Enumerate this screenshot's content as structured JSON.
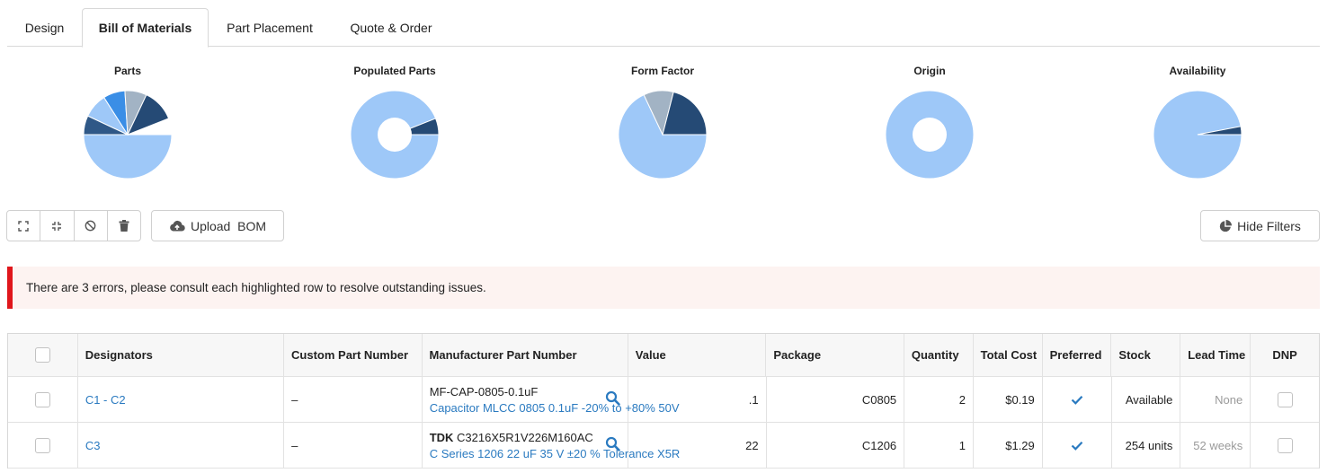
{
  "tabs": [
    {
      "label": "Design"
    },
    {
      "label": "Bill of Materials",
      "active": true
    },
    {
      "label": "Part Placement"
    },
    {
      "label": "Quote & Order"
    }
  ],
  "charts": [
    {
      "title": "Parts",
      "type": "pie",
      "slices": [
        0.5,
        0.07,
        0.09,
        0.08,
        0.08,
        0.12
      ],
      "colors": [
        "#9ec8f8",
        "#2f5887",
        "#9ec8f8",
        "#3a8ee6",
        "#a2b3c4",
        "#254a75"
      ]
    },
    {
      "title": "Populated Parts",
      "type": "donut",
      "slices": [
        0.94,
        0.06
      ],
      "colors": [
        "#9ec8f8",
        "#254a75"
      ]
    },
    {
      "title": "Form Factor",
      "type": "pie",
      "slices": [
        0.68,
        0.11,
        0.21
      ],
      "colors": [
        "#9ec8f8",
        "#a2b3c4",
        "#254a75"
      ]
    },
    {
      "title": "Origin",
      "type": "donut",
      "slices": [
        1.0
      ],
      "colors": [
        "#9ec8f8"
      ]
    },
    {
      "title": "Availability",
      "type": "pie",
      "slices": [
        0.97,
        0.03
      ],
      "colors": [
        "#9ec8f8",
        "#254a75"
      ]
    }
  ],
  "toolbar": {
    "icons": [
      "expand-icon",
      "collapse-icon",
      "block-icon",
      "trash-icon"
    ],
    "upload_label": "Upload  BOM",
    "hide_filters_label": "Hide Filters"
  },
  "error_message": "There are 3 errors, please consult each highlighted row to resolve outstanding issues.",
  "table": {
    "headers": {
      "designators": "Designators",
      "custom_part_number": "Custom Part Number",
      "mpn": "Manufacturer Part Number",
      "value": "Value",
      "package": "Package",
      "quantity": "Quantity",
      "total_cost": "Total Cost",
      "preferred": "Preferred",
      "stock": "Stock",
      "lead_time": "Lead Time",
      "dnp": "DNP"
    },
    "rows": [
      {
        "designators": "C1 - C2",
        "custom_part_number": "–",
        "mpn_brand": "",
        "mpn_code": "MF-CAP-0805-0.1uF",
        "mpn_desc": "Capacitor MLCC 0805 0.1uF -20% to +80% 50V",
        "value": ".1",
        "package": "C0805",
        "quantity": "2",
        "total_cost": "$0.19",
        "preferred": true,
        "stock": "Available",
        "lead_time": "None"
      },
      {
        "designators": "C3",
        "custom_part_number": "–",
        "mpn_brand": "TDK",
        "mpn_code": "C3216X5R1V226M160AC",
        "mpn_desc": "C Series 1206 22 uF 35 V ±20 % Tolerance X5R",
        "value": "22",
        "package": "C1206",
        "quantity": "1",
        "total_cost": "$1.29",
        "preferred": true,
        "stock": "254 units",
        "lead_time": "52 weeks"
      }
    ]
  }
}
